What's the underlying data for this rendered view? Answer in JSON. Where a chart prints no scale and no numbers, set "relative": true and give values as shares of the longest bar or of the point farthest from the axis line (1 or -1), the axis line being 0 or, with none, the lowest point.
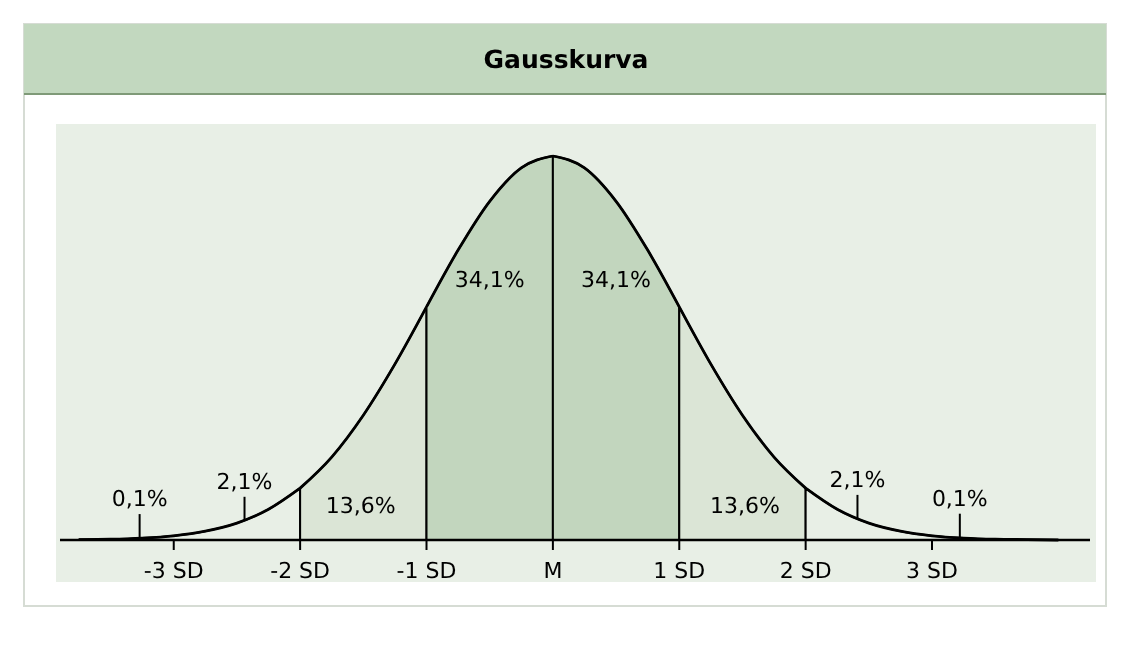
{
  "chart_data": {
    "type": "area",
    "title": "Gausskurva",
    "relative": true,
    "series": [
      {
        "color": "#e8efe6",
        "x": [
          -3.75,
          -3.5,
          -3.25,
          -3,
          -2.75,
          -2.5,
          -2.25,
          -2
        ],
        "values": [
          0.001,
          0.002,
          0.005,
          0.011,
          0.023,
          0.044,
          0.08,
          0.135
        ]
      },
      {
        "color": "#dbe5d6",
        "x": [
          -2,
          -1.75,
          -1.5,
          -1.25,
          -1
        ],
        "values": [
          0.135,
          0.216,
          0.325,
          0.458,
          0.607
        ]
      },
      {
        "color": "#c2d6be",
        "x": [
          -1,
          -0.75,
          -0.5,
          -0.25,
          0
        ],
        "values": [
          0.607,
          0.755,
          0.882,
          0.969,
          1
        ]
      },
      {
        "color": "#c2d6be",
        "x": [
          0,
          0.25,
          0.5,
          0.75,
          1
        ],
        "values": [
          1,
          0.969,
          0.882,
          0.755,
          0.607
        ]
      },
      {
        "color": "#dbe5d6",
        "x": [
          1,
          1.25,
          1.5,
          1.75,
          2
        ],
        "values": [
          0.607,
          0.458,
          0.325,
          0.216,
          0.135
        ]
      },
      {
        "color": "#e8efe6",
        "x": [
          2,
          2.25,
          2.5,
          2.75,
          3,
          3.25,
          3.5,
          3.75,
          4
        ],
        "values": [
          0.135,
          0.08,
          0.044,
          0.023,
          0.011,
          0.005,
          0.002,
          0.001,
          0
        ]
      }
    ],
    "xlim": [
      -3.9,
      4.25
    ],
    "xticks": [
      {
        "value": -3,
        "label": "-3 SD"
      },
      {
        "value": -2,
        "label": "-2 SD"
      },
      {
        "value": -1,
        "label": "-1 SD"
      },
      {
        "value": 0,
        "label": "M"
      },
      {
        "value": 1,
        "label": "1 SD"
      },
      {
        "value": 2,
        "label": "2 SD"
      },
      {
        "value": 3,
        "label": "3 SD"
      }
    ],
    "annotations": [
      {
        "text": "0,1%",
        "x": -3.27,
        "y": 0.005
      },
      {
        "text": "2,1%",
        "x": -2.44,
        "y": 0.05
      },
      "13,6%",
      "34,1%",
      "34,1%",
      "13,6%",
      {
        "text": "2,1%",
        "x": 2.41,
        "y": 0.055
      },
      {
        "text": "0,1%",
        "x": 3.22,
        "y": 0.006
      }
    ]
  }
}
